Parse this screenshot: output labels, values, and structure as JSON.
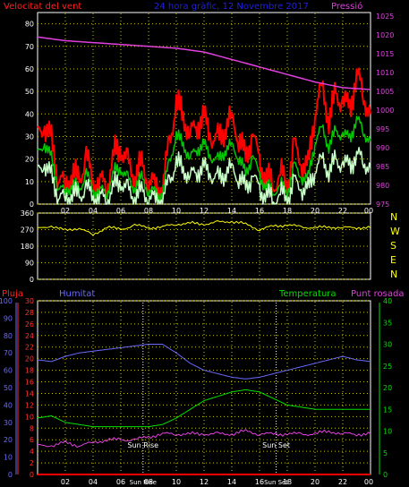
{
  "header": {
    "left_title": "Velocitat del vent",
    "center_title": "24 hora gràfic, 12 Novembre 2017",
    "right_title": "Pressió"
  },
  "colors": {
    "red": "#ff0000",
    "green": "#00c800",
    "pale": "#c8ffc8",
    "magenta": "#e040e0",
    "yellow": "#ffff00",
    "blue": "#6a6aff",
    "bright_green": "#00e000",
    "axis_yellow": "#ffff80",
    "grid": "#c8c800"
  },
  "time_labels": [
    "02",
    "04",
    "06",
    "08",
    "10",
    "12",
    "14",
    "16",
    "18",
    "20",
    "22",
    "00"
  ],
  "chart_data": [
    {
      "type": "line",
      "panel": "wind",
      "title": "Velocitat del vent",
      "left_axis": {
        "ticks": [
          0,
          10,
          20,
          30,
          40,
          50,
          60,
          70,
          80
        ],
        "range": [
          0,
          85
        ]
      },
      "right_axis": {
        "label": "Pressió",
        "ticks": [
          975,
          980,
          985,
          990,
          995,
          1000,
          1005,
          1010,
          1015,
          1020,
          1025
        ],
        "range": [
          975,
          1026
        ]
      },
      "series": [
        {
          "name": "gust",
          "color": "red",
          "x": [
            0,
            0.5,
            1,
            1.5,
            2,
            2.5,
            3,
            3.5,
            4,
            4.5,
            5,
            5.5,
            6,
            6.5,
            7,
            7.5,
            8,
            8.5,
            9,
            9.5,
            10,
            10.5,
            11,
            11.5,
            12,
            12.5,
            13,
            13.5,
            14,
            14.5,
            15,
            15.5,
            16,
            16.5,
            17,
            17.5,
            18,
            18.5,
            19,
            19.5,
            20,
            20.5,
            21,
            21.5,
            22,
            22.5,
            23,
            23.5,
            24
          ],
          "y": [
            30,
            35,
            28,
            12,
            8,
            14,
            10,
            22,
            8,
            10,
            8,
            22,
            25,
            18,
            12,
            18,
            10,
            8,
            6,
            28,
            44,
            40,
            30,
            36,
            38,
            30,
            28,
            34,
            38,
            30,
            20,
            32,
            18,
            12,
            8,
            14,
            8,
            26,
            18,
            16,
            42,
            52,
            38,
            48,
            46,
            42,
            58,
            48,
            40
          ]
        },
        {
          "name": "mean",
          "color": "green",
          "x": [
            0,
            0.5,
            1,
            1.5,
            2,
            2.5,
            3,
            3.5,
            4,
            4.5,
            5,
            5.5,
            6,
            6.5,
            7,
            7.5,
            8,
            8.5,
            9,
            9.5,
            10,
            10.5,
            11,
            11.5,
            12,
            12.5,
            13,
            13.5,
            14,
            14.5,
            15,
            15.5,
            16,
            16.5,
            17,
            17.5,
            18,
            18.5,
            19,
            19.5,
            20,
            20.5,
            21,
            21.5,
            22,
            22.5,
            23,
            23.5,
            24
          ],
          "y": [
            22,
            27,
            20,
            8,
            5,
            9,
            6,
            14,
            5,
            6,
            5,
            14,
            16,
            11,
            7,
            12,
            6,
            5,
            4,
            19,
            30,
            27,
            20,
            25,
            26,
            21,
            19,
            24,
            26,
            21,
            13,
            22,
            12,
            8,
            5,
            9,
            5,
            17,
            12,
            11,
            28,
            34,
            26,
            32,
            31,
            29,
            38,
            32,
            28
          ]
        },
        {
          "name": "minimum",
          "color": "pale",
          "x": [
            0,
            0.5,
            1,
            1.5,
            2,
            2.5,
            3,
            3.5,
            4,
            4.5,
            5,
            5.5,
            6,
            6.5,
            7,
            7.5,
            8,
            8.5,
            9,
            9.5,
            10,
            10.5,
            11,
            11.5,
            12,
            12.5,
            13,
            13.5,
            14,
            14.5,
            15,
            15.5,
            16,
            16.5,
            17,
            17.5,
            18,
            18.5,
            19,
            19.5,
            20,
            20.5,
            21,
            21.5,
            22,
            22.5,
            23,
            23.5,
            24
          ],
          "y": [
            14,
            18,
            12,
            4,
            2,
            5,
            3,
            8,
            2,
            3,
            2,
            8,
            10,
            6,
            3,
            6,
            3,
            2,
            1,
            11,
            18,
            16,
            12,
            15,
            16,
            13,
            11,
            14,
            16,
            12,
            7,
            13,
            6,
            4,
            2,
            5,
            2,
            10,
            7,
            6,
            16,
            20,
            15,
            19,
            18,
            17,
            22,
            19,
            16
          ]
        },
        {
          "name": "Pressió",
          "color": "magenta",
          "x": [
            0,
            2,
            4,
            6,
            8,
            10,
            12,
            14,
            16,
            18,
            20,
            22,
            24
          ],
          "y": [
            1019.5,
            1018.5,
            1018,
            1017.5,
            1017,
            1016.5,
            1015.5,
            1013.5,
            1011.5,
            1009.5,
            1007.5,
            1006,
            1005.5
          ]
        }
      ]
    },
    {
      "type": "line",
      "panel": "direction",
      "left_axis": {
        "ticks": [
          0,
          90,
          180,
          270,
          360
        ],
        "range": [
          0,
          360
        ]
      },
      "compass": [
        "N",
        "W",
        "S",
        "E",
        "N"
      ],
      "series": [
        {
          "name": "direction",
          "color": "yellow",
          "x": [
            0,
            1,
            2,
            3,
            4,
            5,
            6,
            7,
            8,
            9,
            10,
            11,
            12,
            13,
            14,
            15,
            16,
            17,
            18,
            19,
            20,
            21,
            22,
            23,
            24
          ],
          "y": [
            275,
            290,
            265,
            280,
            240,
            285,
            270,
            295,
            280,
            285,
            300,
            305,
            300,
            310,
            315,
            300,
            270,
            290,
            295,
            285,
            280,
            285,
            280,
            282,
            280
          ]
        }
      ]
    },
    {
      "type": "line",
      "panel": "climate",
      "labels": {
        "rain": "Pluja",
        "humidity": "Humitat",
        "temperature": "Temperatura",
        "dewpoint": "Punt rosada"
      },
      "axis_rain": {
        "ticks": [
          0,
          10,
          20,
          30,
          40,
          50,
          60,
          70,
          80,
          90,
          100
        ],
        "range": [
          0,
          100
        ]
      },
      "axis_dewpoint": {
        "ticks": [
          0,
          2,
          4,
          6,
          8,
          10,
          12,
          14,
          16,
          18,
          20,
          22,
          24,
          26,
          28,
          30
        ],
        "range": [
          0,
          30
        ]
      },
      "axis_temperature": {
        "ticks": [
          0,
          5,
          10,
          15,
          20,
          25,
          30,
          35,
          40
        ],
        "range": [
          0,
          40
        ]
      },
      "annotations": [
        {
          "text": "Sun Rise",
          "x": 7.6
        },
        {
          "text": "Sun Set",
          "x": 17.2
        }
      ],
      "series": [
        {
          "name": "Humitat",
          "color": "blue",
          "x": [
            0,
            1,
            2,
            3,
            4,
            5,
            6,
            7,
            8,
            9,
            10,
            11,
            12,
            13,
            14,
            15,
            16,
            17,
            18,
            19,
            20,
            21,
            22,
            23,
            24
          ],
          "y": [
            66,
            65,
            68,
            70,
            71,
            72,
            73,
            74,
            75,
            75,
            70,
            64,
            60,
            58,
            56,
            55,
            56,
            58,
            60,
            62,
            64,
            66,
            68,
            66,
            65
          ]
        },
        {
          "name": "Temperatura",
          "color": "bright_green",
          "x": [
            0,
            1,
            2,
            3,
            4,
            5,
            6,
            7,
            8,
            9,
            10,
            11,
            12,
            13,
            14,
            15,
            16,
            17,
            18,
            19,
            20,
            21,
            22,
            23,
            24
          ],
          "y": [
            13,
            13.5,
            12,
            11.5,
            11,
            11,
            11,
            11,
            11,
            11.5,
            13,
            15,
            17,
            18,
            19,
            19.5,
            19,
            17.5,
            16,
            15.5,
            15,
            15,
            15,
            15,
            15
          ]
        },
        {
          "name": "Punt rosada",
          "color": "magenta",
          "x": [
            0,
            1,
            2,
            3,
            4,
            5,
            6,
            7,
            8,
            9,
            10,
            11,
            12,
            13,
            14,
            15,
            16,
            17,
            18,
            19,
            20,
            21,
            22,
            23,
            24
          ],
          "y": [
            5,
            5,
            5.5,
            5,
            5.5,
            6,
            6,
            6,
            6.5,
            7,
            7,
            7,
            7,
            7,
            7,
            7.5,
            7,
            7,
            7,
            7,
            7,
            7.5,
            7,
            7,
            7
          ]
        },
        {
          "name": "Pluja",
          "color": "red",
          "x": [
            0,
            24
          ],
          "y": [
            0,
            0
          ]
        }
      ]
    }
  ]
}
